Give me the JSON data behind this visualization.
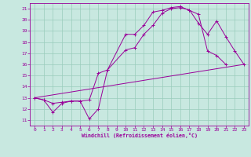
{
  "xlabel": "Windchill (Refroidissement éolien,°C)",
  "xlim": [
    -0.5,
    23.5
  ],
  "ylim": [
    10.5,
    21.5
  ],
  "xticks": [
    0,
    1,
    2,
    3,
    4,
    5,
    6,
    7,
    8,
    9,
    10,
    11,
    12,
    13,
    14,
    15,
    16,
    17,
    18,
    19,
    20,
    21,
    22,
    23
  ],
  "yticks": [
    11,
    12,
    13,
    14,
    15,
    16,
    17,
    18,
    19,
    20,
    21
  ],
  "bg_color": "#c8e8e0",
  "line_color": "#990099",
  "grid_color": "#99ccbb",
  "lines": [
    {
      "x": [
        0,
        1,
        2,
        3,
        4,
        5,
        6,
        7,
        8,
        10,
        11,
        12,
        13,
        14,
        15,
        16,
        17,
        18,
        19,
        20,
        21
      ],
      "y": [
        13,
        12.8,
        11.7,
        12.5,
        12.7,
        12.7,
        11.1,
        12.0,
        15.5,
        18.7,
        18.7,
        19.5,
        20.7,
        20.85,
        21.1,
        21.2,
        20.85,
        20.5,
        17.2,
        16.8,
        16.0
      ],
      "marker": "+"
    },
    {
      "x": [
        0,
        1,
        2,
        3,
        4,
        5,
        6,
        7,
        8,
        10,
        11,
        12,
        13,
        14,
        15,
        16,
        17,
        18,
        19,
        20,
        21,
        22,
        23
      ],
      "y": [
        13,
        12.8,
        12.5,
        12.6,
        12.7,
        12.7,
        12.8,
        15.2,
        15.5,
        17.3,
        17.5,
        18.7,
        19.5,
        20.6,
        21.0,
        21.1,
        20.9,
        19.7,
        18.7,
        19.9,
        18.5,
        17.2,
        16.0
      ],
      "marker": "+"
    },
    {
      "x": [
        0,
        23
      ],
      "y": [
        13,
        16
      ],
      "marker": null
    }
  ]
}
